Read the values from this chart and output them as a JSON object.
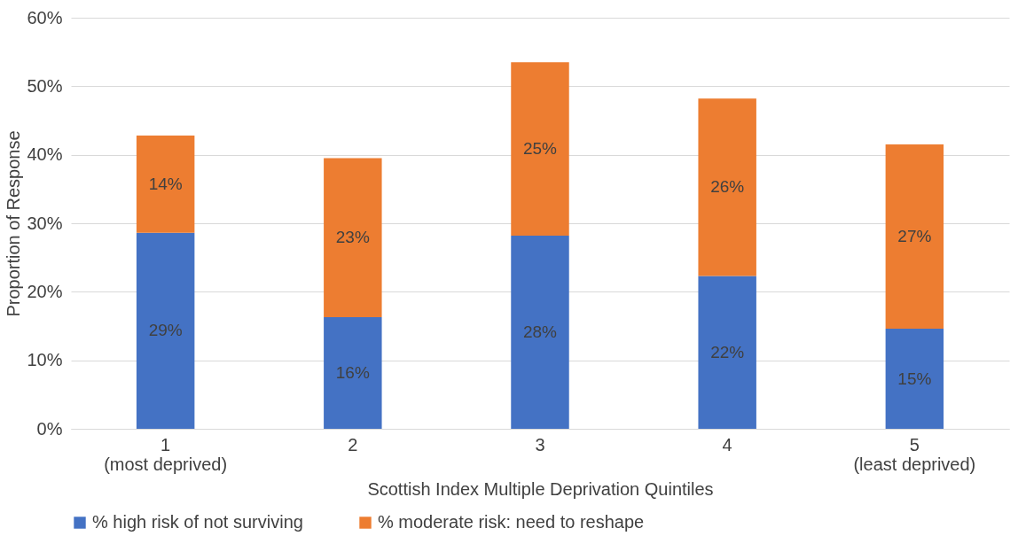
{
  "chart_data": {
    "type": "bar",
    "stacked": true,
    "xlabel": "Scottish Index Multiple Deprivation Quintiles",
    "ylabel": "Proportion of Response",
    "categories": [
      "1\n(most deprived)",
      "2",
      "3",
      "4",
      "5\n(least deprived)"
    ],
    "series": [
      {
        "name": "% high risk of not surviving",
        "color": "#4472c4",
        "values": [
          28.6,
          16.3,
          28.2,
          22.3,
          14.6
        ],
        "value_labels": [
          "29%",
          "16%",
          "28%",
          "22%",
          "15%"
        ]
      },
      {
        "name": "% moderate risk: need to reshape",
        "color": "#ed7d31",
        "values": [
          14.2,
          23.2,
          25.3,
          25.9,
          26.9
        ],
        "value_labels": [
          "14%",
          "23%",
          "25%",
          "26%",
          "27%"
        ]
      }
    ],
    "ylim": [
      0,
      60
    ],
    "yticks": [
      {
        "value": 0,
        "label": "0%"
      },
      {
        "value": 10,
        "label": "10%"
      },
      {
        "value": 20,
        "label": "20%"
      },
      {
        "value": 30,
        "label": "30%"
      },
      {
        "value": 40,
        "label": "40%"
      },
      {
        "value": 50,
        "label": "50%"
      },
      {
        "value": 60,
        "label": "60%"
      }
    ],
    "grid": "y",
    "legend": "bottom"
  }
}
